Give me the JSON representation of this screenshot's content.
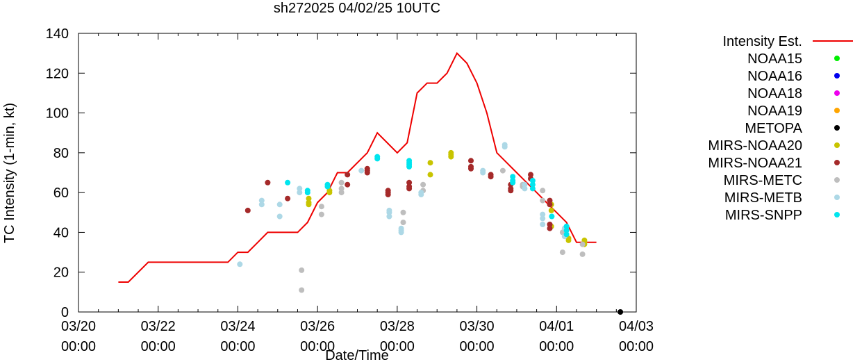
{
  "chart_data": {
    "type": "scatter",
    "title": "sh272025 04/02/25 10UTC",
    "xlabel": "Date/Time",
    "ylabel": "TC Intensity (1-min, kt)",
    "xlim": [
      0,
      14
    ],
    "ylim": [
      0,
      140
    ],
    "x_units": "days since 03/20 00:00",
    "yticks": [
      0,
      20,
      40,
      60,
      80,
      100,
      120,
      140
    ],
    "xticks": [
      {
        "x": 0,
        "line1": "03/20",
        "line2": "00:00"
      },
      {
        "x": 2,
        "line1": "03/22",
        "line2": "00:00"
      },
      {
        "x": 4,
        "line1": "03/24",
        "line2": "00:00"
      },
      {
        "x": 6,
        "line1": "03/26",
        "line2": "00:00"
      },
      {
        "x": 8,
        "line1": "03/28",
        "line2": "00:00"
      },
      {
        "x": 10,
        "line1": "03/30",
        "line2": "00:00"
      },
      {
        "x": 12,
        "line1": "04/01",
        "line2": "00:00"
      },
      {
        "x": 14,
        "line1": "04/03",
        "line2": "00:00"
      }
    ],
    "grid": false,
    "legend_position": "outside-right",
    "intensity_series": {
      "name": "Intensity Est.",
      "color": "#ee0000",
      "x": [
        1.0,
        1.25,
        1.75,
        2.0,
        2.5,
        3.0,
        3.5,
        3.75,
        4.0,
        4.25,
        4.5,
        4.75,
        5.0,
        5.25,
        5.5,
        5.75,
        6.0,
        6.25,
        6.5,
        6.75,
        7.0,
        7.25,
        7.5,
        7.75,
        8.0,
        8.25,
        8.5,
        8.75,
        9.0,
        9.25,
        9.5,
        9.75,
        10.0,
        10.25,
        10.5,
        10.75,
        11.0,
        11.25,
        11.5,
        11.75,
        12.0,
        12.25,
        12.5,
        13.0
      ],
      "y": [
        15,
        15,
        25,
        25,
        25,
        25,
        25,
        25,
        30,
        30,
        35,
        40,
        40,
        40,
        40,
        45,
        55,
        60,
        70,
        70,
        75,
        80,
        90,
        85,
        80,
        85,
        110,
        115,
        115,
        120,
        130,
        125,
        115,
        100,
        80,
        75,
        70,
        65,
        60,
        55,
        50,
        45,
        35,
        35
      ]
    },
    "series": [
      {
        "name": "NOAA15",
        "color": "#00ee00",
        "points": []
      },
      {
        "name": "NOAA16",
        "color": "#0000ee",
        "points": []
      },
      {
        "name": "NOAA18",
        "color": "#ee00ee",
        "points": []
      },
      {
        "name": "NOAA19",
        "color": "#ffa500",
        "points": []
      },
      {
        "name": "METOPA",
        "color": "#000000",
        "points": [
          [
            13.6,
            0
          ]
        ]
      },
      {
        "name": "MIRS-NOAA20",
        "color": "#c8c400",
        "points": [
          [
            5.78,
            57
          ],
          [
            5.78,
            55
          ],
          [
            5.78,
            54
          ],
          [
            6.3,
            60
          ],
          [
            6.3,
            61
          ],
          [
            8.83,
            75
          ],
          [
            8.83,
            69
          ],
          [
            9.35,
            80
          ],
          [
            9.35,
            79
          ],
          [
            9.35,
            78
          ],
          [
            11.87,
            51
          ],
          [
            11.87,
            54
          ],
          [
            11.87,
            43
          ],
          [
            12.3,
            37
          ],
          [
            12.3,
            36
          ],
          [
            12.7,
            36
          ],
          [
            12.7,
            35
          ],
          [
            12.7,
            34
          ]
        ]
      },
      {
        "name": "MIRS-NOAA21",
        "color": "#a52a2a",
        "points": [
          [
            4.25,
            51
          ],
          [
            4.75,
            65
          ],
          [
            5.25,
            57
          ],
          [
            6.75,
            69
          ],
          [
            6.75,
            64
          ],
          [
            7.25,
            72
          ],
          [
            7.25,
            71
          ],
          [
            7.25,
            70
          ],
          [
            7.77,
            61
          ],
          [
            7.77,
            60
          ],
          [
            7.77,
            59
          ],
          [
            8.3,
            65
          ],
          [
            8.3,
            63
          ],
          [
            8.3,
            62
          ],
          [
            9.85,
            76
          ],
          [
            9.85,
            73
          ],
          [
            9.85,
            72
          ],
          [
            10.35,
            69
          ],
          [
            10.35,
            68
          ],
          [
            10.85,
            64
          ],
          [
            10.85,
            62
          ],
          [
            10.85,
            61
          ],
          [
            11.35,
            69
          ],
          [
            11.35,
            67
          ],
          [
            11.83,
            56
          ],
          [
            11.83,
            54
          ],
          [
            11.83,
            44
          ],
          [
            11.83,
            42
          ]
        ]
      },
      {
        "name": "MIRS-METC",
        "color": "#bebebe",
        "points": [
          [
            5.6,
            21
          ],
          [
            5.6,
            11
          ],
          [
            6.1,
            53
          ],
          [
            6.1,
            49
          ],
          [
            6.6,
            65
          ],
          [
            6.6,
            62
          ],
          [
            6.6,
            60
          ],
          [
            8.15,
            50
          ],
          [
            8.15,
            45
          ],
          [
            8.65,
            64
          ],
          [
            8.65,
            61
          ],
          [
            10.65,
            71
          ],
          [
            11.15,
            64
          ],
          [
            11.15,
            63
          ],
          [
            11.65,
            61
          ],
          [
            11.65,
            56
          ],
          [
            12.15,
            40
          ],
          [
            12.15,
            30
          ],
          [
            12.65,
            34
          ],
          [
            12.65,
            29
          ]
        ]
      },
      {
        "name": "MIRS-METB",
        "color": "#add8e6",
        "points": [
          [
            4.05,
            24
          ],
          [
            4.6,
            56
          ],
          [
            4.6,
            54
          ],
          [
            5.05,
            54
          ],
          [
            5.05,
            48
          ],
          [
            5.55,
            62
          ],
          [
            5.55,
            60
          ],
          [
            7.1,
            71
          ],
          [
            7.8,
            51
          ],
          [
            7.8,
            50
          ],
          [
            7.8,
            48
          ],
          [
            8.1,
            42
          ],
          [
            8.1,
            41
          ],
          [
            8.1,
            40
          ],
          [
            8.6,
            60
          ],
          [
            8.6,
            59
          ],
          [
            10.15,
            71
          ],
          [
            10.15,
            70
          ],
          [
            10.7,
            84
          ],
          [
            10.7,
            83
          ],
          [
            11.2,
            64
          ],
          [
            11.2,
            62
          ],
          [
            11.65,
            49
          ],
          [
            11.65,
            47
          ],
          [
            11.65,
            44
          ],
          [
            12.2,
            42
          ],
          [
            12.2,
            38
          ]
        ]
      },
      {
        "name": "MIRS-SNPP",
        "color": "#00e5ee",
        "points": [
          [
            5.25,
            65
          ],
          [
            5.75,
            61
          ],
          [
            5.75,
            60
          ],
          [
            6.25,
            64
          ],
          [
            6.25,
            63
          ],
          [
            7.5,
            78
          ],
          [
            7.5,
            77
          ],
          [
            8.3,
            76
          ],
          [
            8.3,
            75
          ],
          [
            8.3,
            74
          ],
          [
            8.3,
            73
          ],
          [
            10.9,
            68
          ],
          [
            10.9,
            66
          ],
          [
            10.9,
            65
          ],
          [
            11.4,
            66
          ],
          [
            11.4,
            64
          ],
          [
            11.4,
            62
          ],
          [
            11.88,
            48
          ],
          [
            12.25,
            43
          ],
          [
            12.25,
            41
          ],
          [
            12.25,
            39
          ]
        ]
      }
    ]
  }
}
